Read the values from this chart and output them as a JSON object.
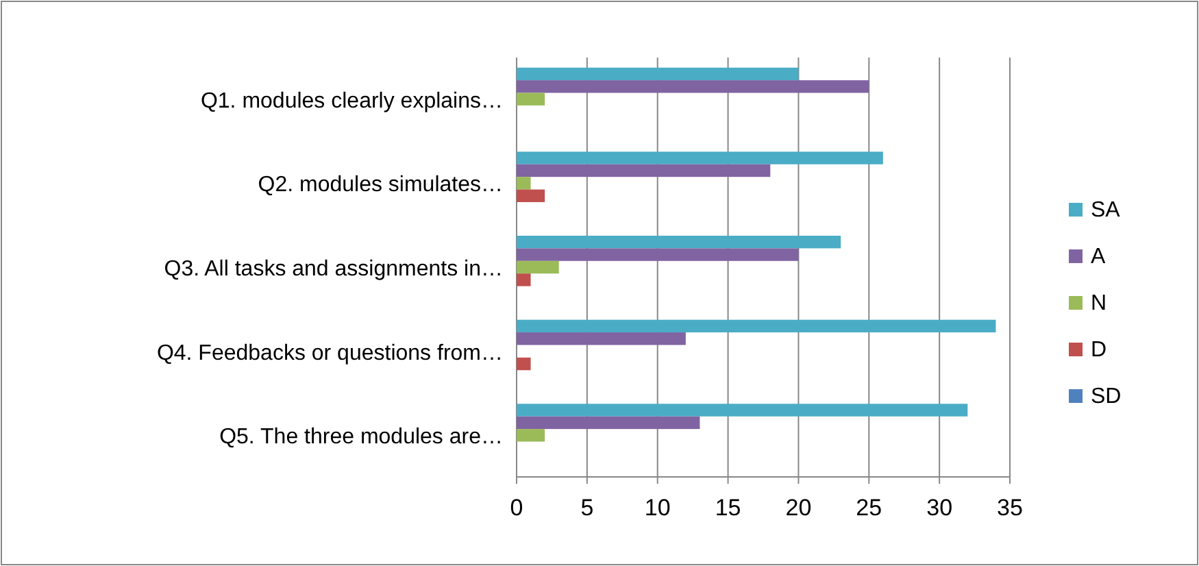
{
  "chart_data": {
    "type": "bar",
    "orientation": "horizontal",
    "categories": [
      "Q1.  modules clearly explains…",
      "Q2.  modules simulates…",
      "Q3.  All tasks and assignments in…",
      "Q4.  Feedbacks or questions from…",
      "Q5.  The three modules are…"
    ],
    "series": [
      {
        "name": "SA",
        "color": "#4bacc6",
        "values": [
          20,
          26,
          23,
          34,
          32
        ]
      },
      {
        "name": "A",
        "color": "#8064a2",
        "values": [
          25,
          18,
          20,
          12,
          13
        ]
      },
      {
        "name": "N",
        "color": "#9bbb59",
        "values": [
          2,
          1,
          3,
          0,
          2
        ]
      },
      {
        "name": "D",
        "color": "#c0504d",
        "values": [
          0,
          2,
          1,
          1,
          0
        ]
      },
      {
        "name": "SD",
        "color": "#4f81bd",
        "values": [
          0,
          0,
          0,
          0,
          0
        ]
      }
    ],
    "xlim": [
      0,
      35
    ],
    "xticks": [
      0,
      5,
      10,
      15,
      20,
      25,
      30,
      35
    ],
    "grid": "x",
    "legend": "right"
  }
}
